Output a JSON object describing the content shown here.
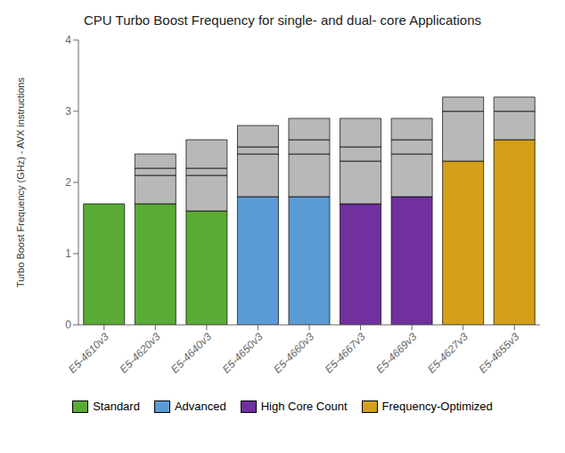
{
  "chart_data": {
    "type": "bar",
    "title": "CPU Turbo Boost Frequency for single- and dual- core Applications",
    "y_label": "Turbo Boost Frequency (GHz) - AVX instructions",
    "categories": [
      "E5-4610v3",
      "E5-4620v3",
      "E5-4640v3",
      "E5-4650v3",
      "E5-4660v3",
      "E5-4667v3",
      "E5-4669v3",
      "E5-4627v3",
      "E5-4655v3"
    ],
    "series": [
      {
        "colors": [
          "#5aab34",
          "#5aab34",
          "#5aab34",
          "#5b9bd5",
          "#5b9bd5",
          "#7030a0",
          "#7030a0",
          "#d4a017",
          "#d4a017"
        ],
        "values": [
          1.7,
          1.7,
          1.6,
          1.8,
          1.8,
          1.7,
          1.8,
          2.3,
          2.6
        ]
      },
      {
        "color": "#b8b8b8",
        "values": [
          null,
          0.4,
          0.5,
          0.6,
          0.6,
          0.6,
          0.6,
          0.7,
          0.4
        ]
      },
      {
        "color": "#b8b8b8",
        "values": [
          null,
          0.1,
          0.1,
          0.1,
          0.2,
          0.2,
          0.2,
          0.2,
          0.2
        ]
      },
      {
        "color": "#b8b8b8",
        "values": [
          null,
          0.2,
          0.4,
          0.3,
          0.3,
          0.4,
          0.3,
          null,
          null
        ]
      }
    ],
    "stacked": true,
    "ylim": [
      0,
      4
    ],
    "yticks": [
      0,
      1,
      2,
      3,
      4
    ],
    "grid": false,
    "legend": "bottom",
    "legend_entries": [
      {
        "name": "Standard",
        "color": "#5aab34"
      },
      {
        "name": "Advanced",
        "color": "#5b9bd5"
      },
      {
        "name": "High Core Count",
        "color": "#7030a0"
      },
      {
        "name": "Frequency-Optimized",
        "color": "#d4a017"
      }
    ]
  }
}
